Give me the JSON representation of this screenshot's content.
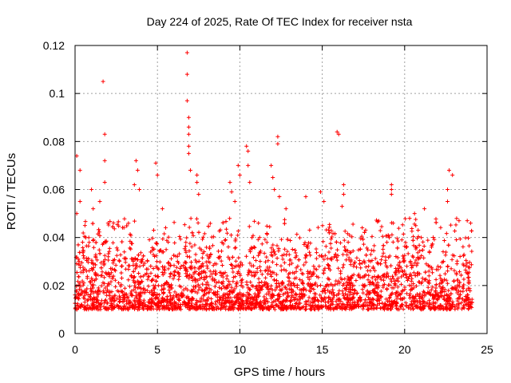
{
  "chart_data": {
    "type": "scatter",
    "title": "Day 224 of 2025, Rate Of TEC Index for receiver nsta",
    "xlabel": "GPS time / hours",
    "ylabel": "ROTI / TECUs",
    "xlim": [
      0,
      25
    ],
    "ylim": [
      0,
      0.12
    ],
    "xticks": [
      0,
      5,
      10,
      15,
      20,
      25
    ],
    "xtick_labels": [
      "0",
      "5",
      "10",
      "15",
      "20",
      "25"
    ],
    "yticks": [
      0,
      0.02,
      0.04,
      0.06,
      0.08,
      0.1,
      0.12
    ],
    "ytick_labels": [
      "0",
      "0.02",
      "0.04",
      "0.06",
      "0.08",
      "0.1",
      "0.12"
    ],
    "grid": true,
    "marker": "+",
    "color": "#ff0000",
    "series": [
      {
        "name": "ROTI",
        "sample_points": [
          [
            0.1,
            0.074
          ],
          [
            0.1,
            0.05
          ],
          [
            0.3,
            0.068
          ],
          [
            0.3,
            0.055
          ],
          [
            0.6,
            0.045
          ],
          [
            1.0,
            0.06
          ],
          [
            1.1,
            0.052
          ],
          [
            1.7,
            0.105
          ],
          [
            1.8,
            0.083
          ],
          [
            1.8,
            0.072
          ],
          [
            1.8,
            0.063
          ],
          [
            1.5,
            0.055
          ],
          [
            2.0,
            0.046
          ],
          [
            3.7,
            0.072
          ],
          [
            3.8,
            0.068
          ],
          [
            3.6,
            0.062
          ],
          [
            3.9,
            0.06
          ],
          [
            4.9,
            0.071
          ],
          [
            5.0,
            0.066
          ],
          [
            5.3,
            0.052
          ],
          [
            6.8,
            0.117
          ],
          [
            6.8,
            0.108
          ],
          [
            6.8,
            0.097
          ],
          [
            6.9,
            0.09
          ],
          [
            6.9,
            0.086
          ],
          [
            6.9,
            0.083
          ],
          [
            6.9,
            0.078
          ],
          [
            6.9,
            0.075
          ],
          [
            7.0,
            0.068
          ],
          [
            7.4,
            0.066
          ],
          [
            7.4,
            0.063
          ],
          [
            7.5,
            0.058
          ],
          [
            9.4,
            0.063
          ],
          [
            9.5,
            0.059
          ],
          [
            9.7,
            0.055
          ],
          [
            9.9,
            0.07
          ],
          [
            10.0,
            0.066
          ],
          [
            10.4,
            0.078
          ],
          [
            10.5,
            0.076
          ],
          [
            10.5,
            0.07
          ],
          [
            10.6,
            0.063
          ],
          [
            11.9,
            0.07
          ],
          [
            12.0,
            0.065
          ],
          [
            12.1,
            0.06
          ],
          [
            12.3,
            0.082
          ],
          [
            12.3,
            0.079
          ],
          [
            12.4,
            0.057
          ],
          [
            12.8,
            0.052
          ],
          [
            14.0,
            0.057
          ],
          [
            14.9,
            0.059
          ],
          [
            15.1,
            0.055
          ],
          [
            15.9,
            0.084
          ],
          [
            16.0,
            0.083
          ],
          [
            16.3,
            0.062
          ],
          [
            16.3,
            0.058
          ],
          [
            16.2,
            0.053
          ],
          [
            19.2,
            0.062
          ],
          [
            19.2,
            0.06
          ],
          [
            19.2,
            0.058
          ],
          [
            19.3,
            0.046
          ],
          [
            19.0,
            0.041
          ],
          [
            20.3,
            0.048
          ],
          [
            20.6,
            0.05
          ],
          [
            21.2,
            0.052
          ],
          [
            22.7,
            0.068
          ],
          [
            22.9,
            0.066
          ],
          [
            22.6,
            0.06
          ],
          [
            22.6,
            0.055
          ],
          [
            23.3,
            0.047
          ],
          [
            23.8,
            0.047
          ],
          [
            24.0,
            0.046
          ]
        ],
        "typical_range": [
          0.004,
          0.035
        ]
      }
    ]
  }
}
